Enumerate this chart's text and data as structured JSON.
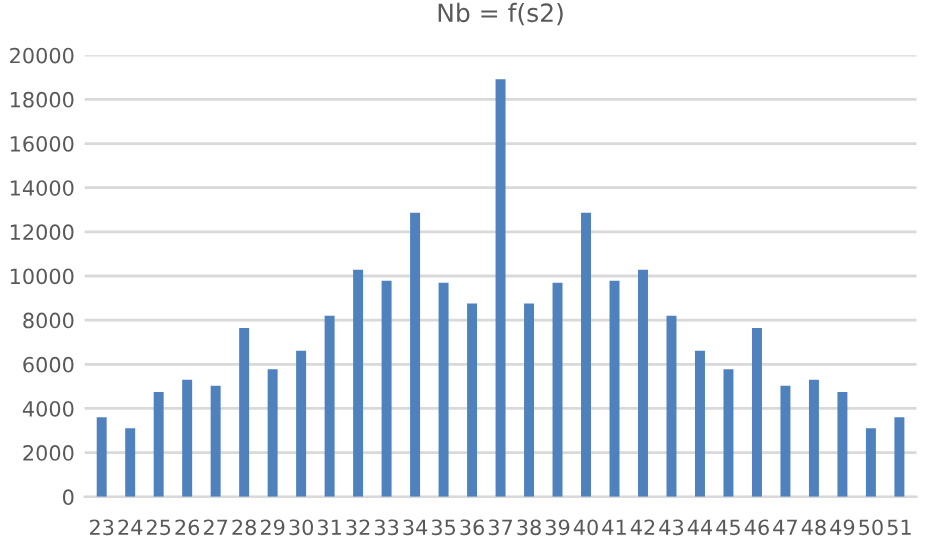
{
  "chart_data": {
    "type": "bar",
    "title": "Nb = f(s2)",
    "categories": [
      "23",
      "24",
      "25",
      "26",
      "27",
      "28",
      "29",
      "30",
      "31",
      "32",
      "33",
      "34",
      "35",
      "36",
      "37",
      "38",
      "39",
      "40",
      "41",
      "42",
      "43",
      "44",
      "45",
      "46",
      "47",
      "48",
      "49",
      "50",
      "51"
    ],
    "values": [
      3600,
      3100,
      4750,
      5300,
      5030,
      7640,
      5780,
      6610,
      8200,
      10280,
      9780,
      12860,
      9690,
      8760,
      18910,
      8760,
      9690,
      12860,
      9780,
      10280,
      8200,
      6610,
      5780,
      7640,
      5030,
      5300,
      4750,
      3100,
      3600
    ],
    "color": "#4f81bd",
    "ylim": [
      0,
      20000
    ],
    "yticks": [
      0,
      2000,
      4000,
      6000,
      8000,
      10000,
      12000,
      14000,
      16000,
      18000,
      20000
    ],
    "grid": "y"
  }
}
